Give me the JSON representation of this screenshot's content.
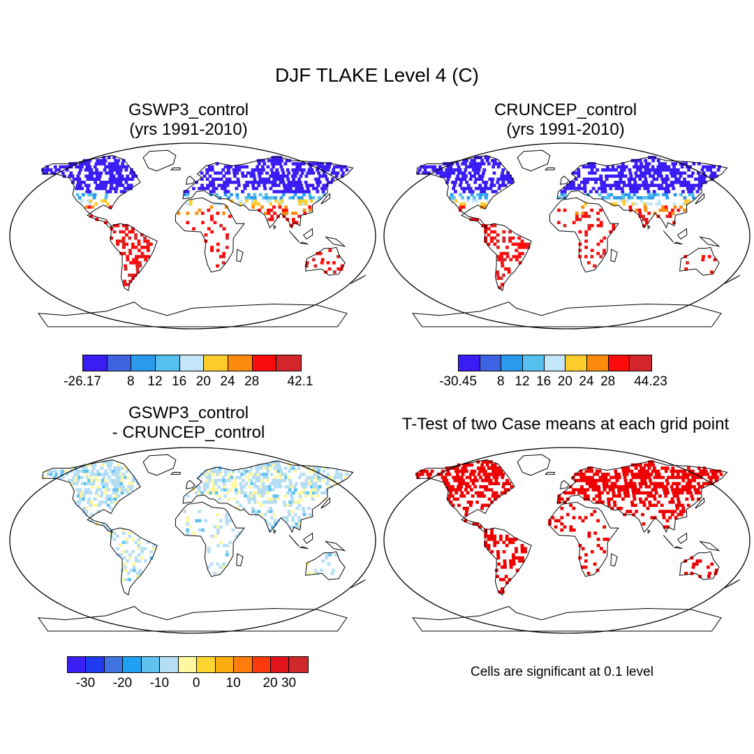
{
  "main_title": "DJF TLAKE Level 4 (C)",
  "panels": [
    {
      "id": "tl",
      "title": [
        "GSWP3_control",
        "(yrs 1991-2010)"
      ]
    },
    {
      "id": "tr",
      "title": [
        "CRUNCEP_control",
        "(yrs 1991-2010)"
      ]
    },
    {
      "id": "bl",
      "title": [
        "GSWP3_control",
        "- CRUNCEP_control"
      ]
    },
    {
      "id": "br",
      "title": [
        "T-Test of two Case means at each grid point"
      ]
    }
  ],
  "colorbars": {
    "tl": {
      "colors": [
        "#3a1cf5",
        "#3e63e0",
        "#2a9aef",
        "#55bfee",
        "#c4e6f9",
        "#fccb2c",
        "#fc8a0c",
        "#fa0c0c",
        "#d2262a"
      ],
      "ticks": [
        "-26.17",
        "8",
        "12",
        "16",
        "20",
        "24",
        "28",
        "42.1"
      ]
    },
    "tr": {
      "colors": [
        "#3a1cf5",
        "#3e63e0",
        "#2a9aef",
        "#55bfee",
        "#c4e6f9",
        "#fccb2c",
        "#fc8a0c",
        "#fa0c0c",
        "#d2262a"
      ],
      "ticks": [
        "-30.45",
        "8",
        "12",
        "16",
        "20",
        "24",
        "28",
        "44.23"
      ]
    },
    "bl": {
      "colors": [
        "#3b1ff7",
        "#1f3af0",
        "#3e73e0",
        "#1fa0f0",
        "#5fc2ee",
        "#b5def5",
        "#fdf7a0",
        "#fdd730",
        "#fcae0f",
        "#fd7e0a",
        "#fc3a0c",
        "#e2141c",
        "#d0282b"
      ],
      "ticks": [
        "-30",
        "-20",
        "-10",
        "0",
        "10",
        "20",
        "30"
      ]
    }
  },
  "significance_note": "Cells are significant at 0.1 level",
  "colors": {
    "cold": "#3a1cf5",
    "warm": "#fa0c0c",
    "diff_blue": "#b5def5",
    "diff_yellow": "#fdf7a0",
    "significant": "#ee0000"
  }
}
